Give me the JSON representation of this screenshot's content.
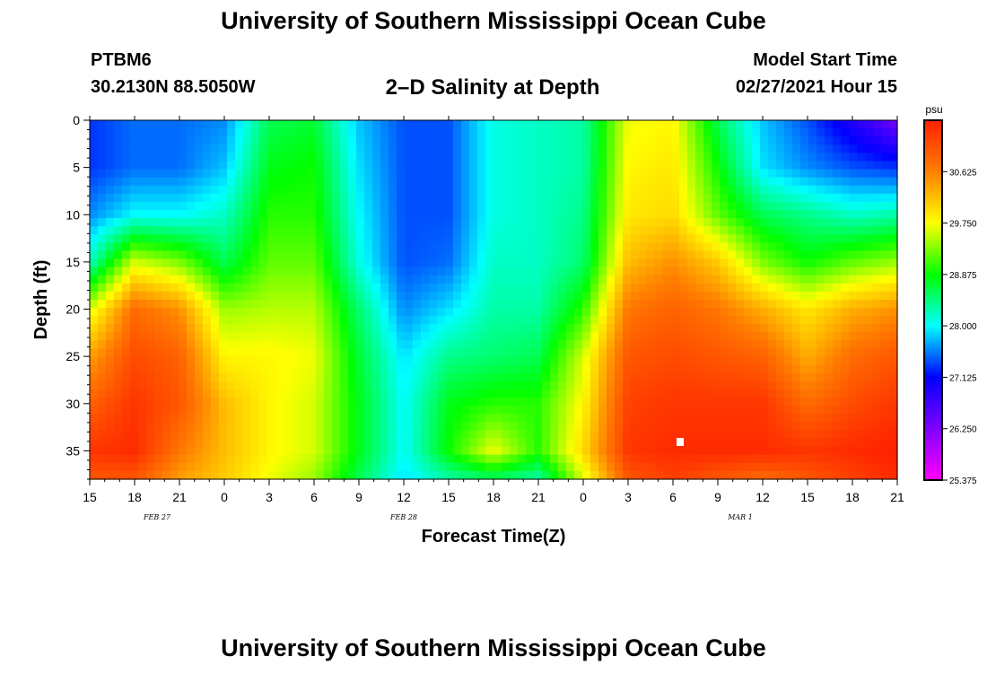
{
  "header": {
    "title": "University of Southern Mississippi Ocean Cube",
    "station_id": "PTBM6",
    "station_coords": "30.2130N 88.5050W",
    "plot_title": "2–D Salinity at Depth",
    "model_start_label": "Model Start Time",
    "model_start_time": "02/27/2021 Hour 15"
  },
  "footer": {
    "title": "University of Southern Mississippi Ocean Cube"
  },
  "colors": {
    "scale": [
      "#ff00ff",
      "#7f00ff",
      "#0000ff",
      "#00ffff",
      "#00ff00",
      "#ffff00",
      "#ff7f00",
      "#ff2000"
    ]
  },
  "chart_data": {
    "type": "heatmap",
    "title": "2–D Salinity at Depth",
    "xlabel": "Forecast Time(Z)",
    "ylabel": "Depth (ft)",
    "x_unit": "hours since 02/27 15Z",
    "xlim": [
      0,
      54
    ],
    "ylim": [
      0,
      38
    ],
    "y_ticks": [
      0,
      5,
      10,
      15,
      20,
      25,
      30,
      35
    ],
    "x_ticks": [
      {
        "hour": 0,
        "label": "15"
      },
      {
        "hour": 3,
        "label": "18"
      },
      {
        "hour": 6,
        "label": "21"
      },
      {
        "hour": 9,
        "label": "0"
      },
      {
        "hour": 12,
        "label": "3"
      },
      {
        "hour": 15,
        "label": "6"
      },
      {
        "hour": 18,
        "label": "9"
      },
      {
        "hour": 21,
        "label": "12"
      },
      {
        "hour": 24,
        "label": "15"
      },
      {
        "hour": 27,
        "label": "18"
      },
      {
        "hour": 30,
        "label": "21"
      },
      {
        "hour": 33,
        "label": "0"
      },
      {
        "hour": 36,
        "label": "3"
      },
      {
        "hour": 39,
        "label": "6"
      },
      {
        "hour": 42,
        "label": "9"
      },
      {
        "hour": 45,
        "label": "12"
      },
      {
        "hour": 48,
        "label": "15"
      },
      {
        "hour": 51,
        "label": "18"
      },
      {
        "hour": 54,
        "label": "21"
      }
    ],
    "date_labels": [
      {
        "hour": 4.5,
        "label": "FEB 27"
      },
      {
        "hour": 21,
        "label": "FEB 28"
      },
      {
        "hour": 43.5,
        "label": "MAR 1"
      }
    ],
    "colorbar": {
      "unit": "psu",
      "min": 25.375,
      "max": 31.5,
      "tick_values": [
        30.625,
        29.75,
        28.875,
        28.0,
        27.125,
        26.25,
        25.375
      ],
      "tick_labels": [
        "30.625",
        "29.750",
        "28.875",
        "28.000",
        "27.125",
        "26.250",
        "25.375"
      ]
    },
    "grid": {
      "depths": [
        0,
        5,
        10,
        15,
        20,
        25,
        30,
        35,
        38
      ],
      "hours": [
        0,
        3,
        6,
        9,
        12,
        15,
        18,
        21,
        24,
        27,
        30,
        33,
        36,
        39,
        42,
        45,
        48,
        51,
        54
      ],
      "salinity": [
        [
          27.3,
          27.5,
          27.5,
          27.6,
          28.6,
          28.7,
          27.8,
          27.4,
          27.4,
          28.1,
          28.2,
          28.3,
          29.7,
          29.8,
          28.6,
          27.8,
          27.4,
          26.9,
          26.3
        ],
        [
          27.3,
          27.5,
          27.5,
          27.8,
          28.8,
          28.9,
          27.9,
          27.4,
          27.4,
          28.1,
          28.2,
          28.3,
          29.8,
          29.9,
          28.9,
          27.9,
          27.6,
          27.4,
          27.3
        ],
        [
          27.6,
          28.0,
          28.0,
          28.2,
          29.0,
          29.0,
          28.0,
          27.4,
          27.4,
          28.1,
          28.2,
          28.4,
          29.9,
          30.0,
          29.2,
          28.6,
          28.4,
          28.2,
          28.3
        ],
        [
          28.2,
          29.6,
          29.3,
          28.6,
          29.2,
          29.2,
          28.1,
          27.4,
          27.5,
          28.2,
          28.2,
          28.5,
          30.2,
          30.5,
          30.1,
          29.3,
          28.9,
          29.2,
          29.4
        ],
        [
          29.6,
          30.8,
          30.5,
          29.4,
          29.5,
          29.5,
          28.5,
          27.6,
          27.9,
          28.3,
          28.3,
          29.0,
          30.7,
          30.9,
          30.7,
          30.3,
          29.9,
          30.3,
          30.5
        ],
        [
          30.4,
          31.1,
          30.9,
          29.8,
          29.8,
          29.7,
          28.7,
          27.9,
          28.4,
          28.5,
          28.6,
          29.6,
          31.0,
          31.1,
          31.0,
          30.9,
          30.3,
          30.8,
          31.0
        ],
        [
          30.9,
          31.3,
          31.0,
          30.2,
          29.8,
          29.6,
          28.8,
          28.0,
          28.8,
          29.0,
          29.0,
          29.8,
          31.2,
          31.3,
          31.3,
          31.3,
          30.8,
          31.1,
          31.3
        ],
        [
          31.3,
          31.4,
          30.7,
          30.2,
          29.8,
          29.6,
          28.8,
          28.0,
          28.9,
          29.7,
          29.0,
          30.0,
          31.3,
          31.4,
          31.4,
          31.4,
          31.3,
          31.4,
          31.5
        ],
        [
          31.0,
          31.0,
          30.4,
          30.1,
          29.7,
          29.4,
          28.6,
          27.9,
          28.3,
          28.5,
          28.3,
          29.6,
          31.0,
          31.2,
          31.0,
          30.8,
          31.0,
          31.2,
          31.4
        ]
      ]
    }
  }
}
